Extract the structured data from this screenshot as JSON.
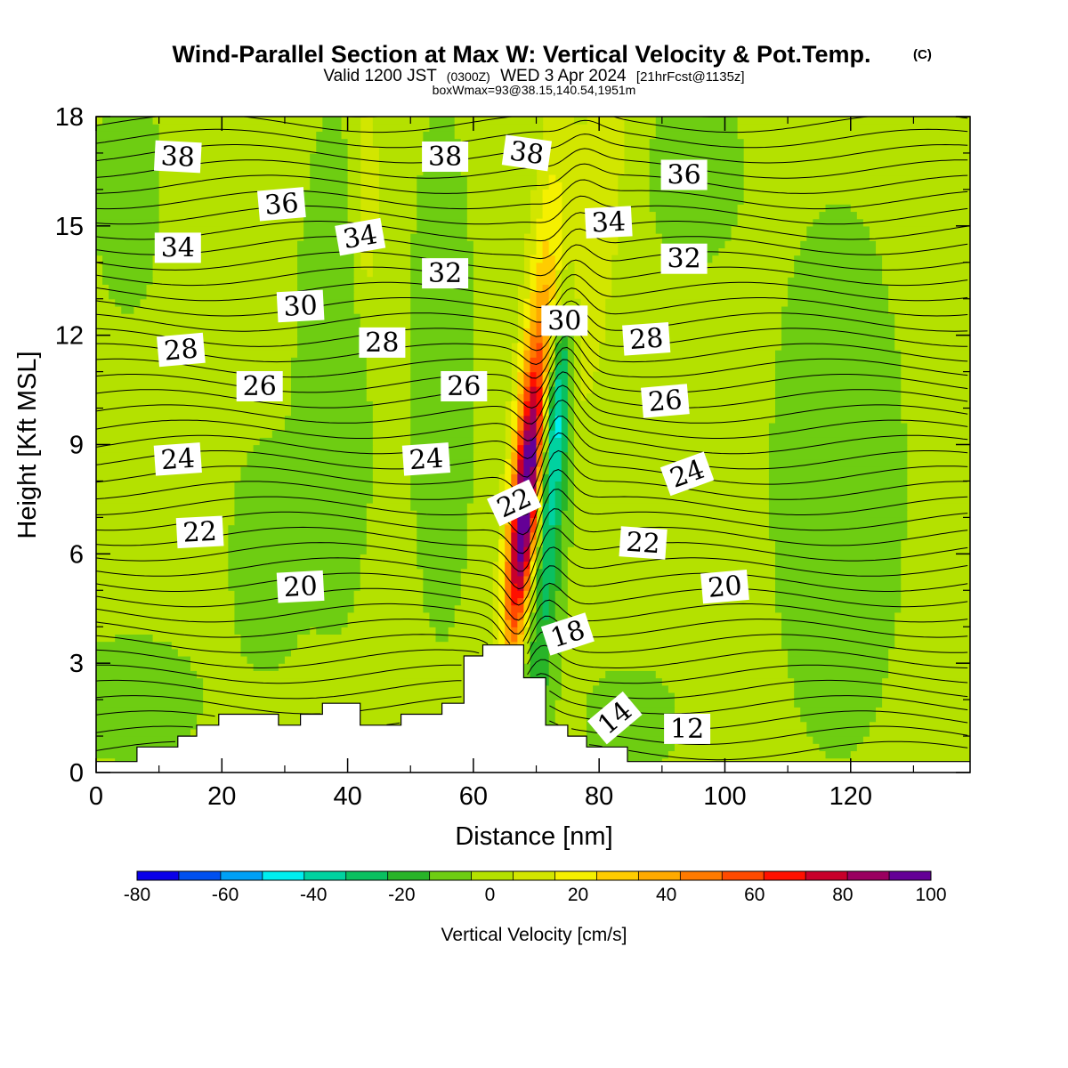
{
  "chart_data": {
    "type": "heatmap",
    "title": "Wind-Parallel Section at Max W: Vertical Velocity & Pot.Temp.",
    "title_suffix": "(C)",
    "subtitle": {
      "valid": "Valid 1200 JST",
      "utc": "(0300Z)",
      "date": "WED 3 Apr 2024",
      "forecast": "[21hrFcst@1135z]"
    },
    "box_info": "boxWmax=93@38.15,140.54,1951m",
    "xlabel": "Distance [nm]",
    "ylabel": "Height [Kft MSL]",
    "xlim": [
      0,
      139
    ],
    "ylim": [
      0,
      18
    ],
    "x_ticks": [
      0,
      20,
      40,
      60,
      80,
      100,
      120
    ],
    "y_ticks": [
      0,
      3,
      6,
      9,
      12,
      15,
      18
    ],
    "colorbar": {
      "label": "Vertical Velocity [cm/s]",
      "ticks": [
        -80,
        -60,
        -40,
        -20,
        0,
        20,
        40,
        60,
        80,
        100
      ],
      "levels": [
        -80,
        -70,
        -60,
        -50,
        -40,
        -30,
        -20,
        -10,
        0,
        10,
        20,
        30,
        40,
        50,
        60,
        70,
        80,
        90,
        100
      ],
      "colors": [
        "#0a00e8",
        "#0050f0",
        "#00a0f5",
        "#00eef0",
        "#00d2a0",
        "#0ac060",
        "#28b428",
        "#6ecd12",
        "#b4e100",
        "#d2e600",
        "#f5f000",
        "#ffcc00",
        "#ffaa00",
        "#ff7a00",
        "#ff4a00",
        "#ff1000",
        "#c8002a",
        "#9a0060",
        "#640096"
      ]
    },
    "theta_contour_labels": [
      {
        "text": "38",
        "x": 13,
        "z": 16.9,
        "rot": 3
      },
      {
        "text": "38",
        "x": 55.5,
        "z": 16.9,
        "rot": 0
      },
      {
        "text": "38",
        "x": 68.5,
        "z": 17.0,
        "rot": 8
      },
      {
        "text": "36",
        "x": 93.5,
        "z": 16.4,
        "rot": 0
      },
      {
        "text": "36",
        "x": 29.5,
        "z": 15.6,
        "rot": -5
      },
      {
        "text": "34",
        "x": 42,
        "z": 14.7,
        "rot": -10
      },
      {
        "text": "34",
        "x": 81.5,
        "z": 15.1,
        "rot": -3
      },
      {
        "text": "34",
        "x": 13,
        "z": 14.4,
        "rot": 0
      },
      {
        "text": "32",
        "x": 55.5,
        "z": 13.7,
        "rot": 0
      },
      {
        "text": "32",
        "x": 93.5,
        "z": 14.1,
        "rot": 0
      },
      {
        "text": "30",
        "x": 32.5,
        "z": 12.8,
        "rot": -3
      },
      {
        "text": "30",
        "x": 74.5,
        "z": 12.4,
        "rot": 0
      },
      {
        "text": "28",
        "x": 13.5,
        "z": 11.6,
        "rot": -5
      },
      {
        "text": "28",
        "x": 45.5,
        "z": 11.8,
        "rot": 0
      },
      {
        "text": "28",
        "x": 87.5,
        "z": 11.9,
        "rot": -4
      },
      {
        "text": "26",
        "x": 26,
        "z": 10.6,
        "rot": 0
      },
      {
        "text": "26",
        "x": 58.5,
        "z": 10.6,
        "rot": 0
      },
      {
        "text": "26",
        "x": 90.5,
        "z": 10.2,
        "rot": -5
      },
      {
        "text": "24",
        "x": 13,
        "z": 8.6,
        "rot": -4
      },
      {
        "text": "24",
        "x": 52.5,
        "z": 8.6,
        "rot": -4
      },
      {
        "text": "24",
        "x": 94,
        "z": 8.2,
        "rot": -20
      },
      {
        "text": "22",
        "x": 66.5,
        "z": 7.4,
        "rot": -25
      },
      {
        "text": "22",
        "x": 16.5,
        "z": 6.6,
        "rot": -3
      },
      {
        "text": "22",
        "x": 87,
        "z": 6.3,
        "rot": 4
      },
      {
        "text": "20",
        "x": 32.5,
        "z": 5.1,
        "rot": -3
      },
      {
        "text": "20",
        "x": 100,
        "z": 5.1,
        "rot": -5
      },
      {
        "text": "18",
        "x": 75,
        "z": 3.8,
        "rot": -18
      },
      {
        "text": "14",
        "x": 82.5,
        "z": 1.5,
        "rot": -40
      },
      {
        "text": "12",
        "x": 94,
        "z": 1.2,
        "rot": 0
      }
    ],
    "terrain_profile_kft": [
      [
        0,
        0.3
      ],
      [
        6.5,
        0.7
      ],
      [
        13,
        1.0
      ],
      [
        16,
        1.3
      ],
      [
        19.5,
        1.6
      ],
      [
        29,
        1.3
      ],
      [
        32.5,
        1.6
      ],
      [
        36,
        1.9
      ],
      [
        42,
        1.3
      ],
      [
        48.5,
        1.6
      ],
      [
        55,
        1.9
      ],
      [
        58.5,
        3.2
      ],
      [
        61.5,
        3.5
      ],
      [
        68,
        2.6
      ],
      [
        71.5,
        1.3
      ],
      [
        75,
        1.0
      ],
      [
        78,
        0.7
      ],
      [
        84.5,
        0.3
      ],
      [
        139,
        0.3
      ]
    ]
  }
}
